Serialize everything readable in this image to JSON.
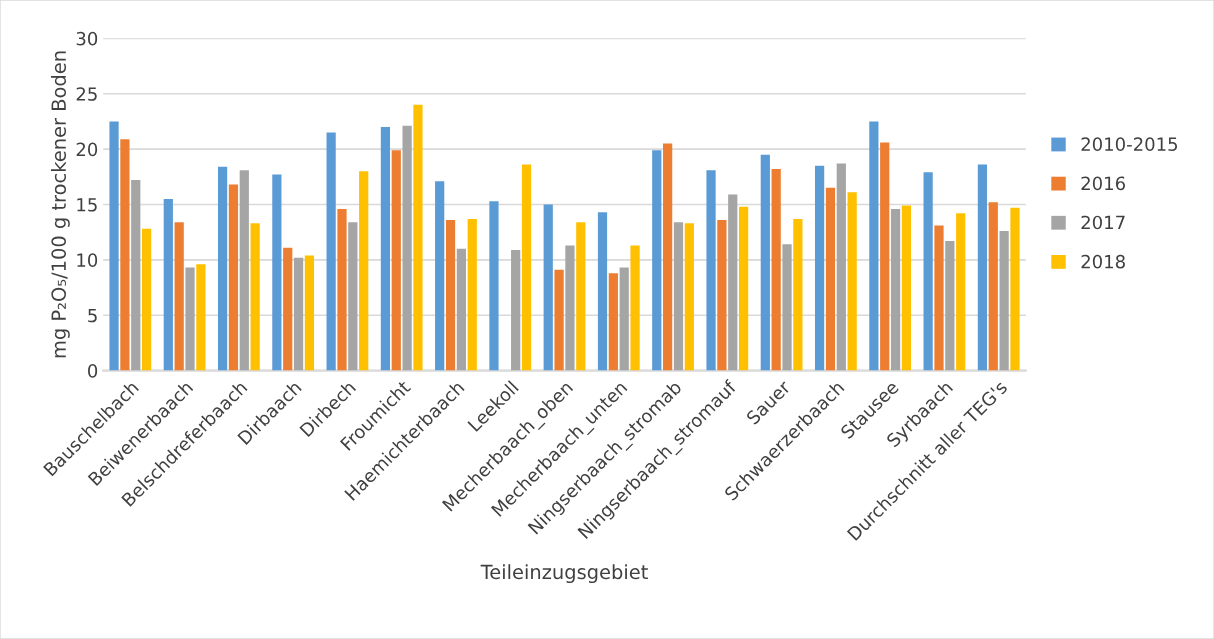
{
  "chart_data": {
    "type": "bar",
    "xlabel": "Teileinzugsgebiet",
    "ylabel": "mg P₂O₅/100 g trockener Boden",
    "categories": [
      "Bauschelbach",
      "Beiwenerbaach",
      "Belschdreferbaach",
      "Dirbaach",
      "Dirbech",
      "Froumicht",
      "Haemichterbaach",
      "Leekoll",
      "Mecherbaach_oben",
      "Mecherbaach_unten",
      "Ningserbaach_stromab",
      "Ningserbaach_stromauf",
      "Sauer",
      "Schwaerzerbaach",
      "Stausee",
      "Syrbaach",
      "Durchschnitt aller TEG's"
    ],
    "series": [
      {
        "name": "2010-2015",
        "color": "#5b9bd5",
        "values": [
          22.5,
          15.5,
          18.4,
          17.7,
          21.5,
          22.0,
          17.1,
          15.3,
          15.0,
          14.3,
          19.9,
          18.1,
          19.5,
          18.5,
          22.5,
          17.9,
          18.6
        ]
      },
      {
        "name": "2016",
        "color": "#ed7d31",
        "values": [
          20.9,
          13.4,
          16.8,
          11.1,
          14.6,
          19.9,
          13.6,
          null,
          9.1,
          8.8,
          20.5,
          13.6,
          18.2,
          16.5,
          20.6,
          13.1,
          15.2
        ]
      },
      {
        "name": "2017",
        "color": "#a5a5a5",
        "values": [
          17.2,
          9.3,
          18.1,
          10.2,
          13.4,
          22.1,
          11.0,
          10.9,
          11.3,
          9.3,
          13.4,
          15.9,
          11.4,
          18.7,
          14.6,
          11.7,
          12.6
        ]
      },
      {
        "name": "2018",
        "color": "#ffc000",
        "values": [
          12.8,
          9.6,
          13.3,
          10.4,
          18.0,
          24.0,
          13.7,
          18.6,
          13.4,
          11.3,
          13.3,
          14.8,
          13.7,
          16.1,
          14.9,
          14.2,
          14.7
        ]
      }
    ],
    "ylim": [
      0,
      30
    ],
    "yticks": [
      0,
      5,
      10,
      15,
      20,
      25,
      30
    ],
    "grid": "y",
    "legend": "right"
  }
}
